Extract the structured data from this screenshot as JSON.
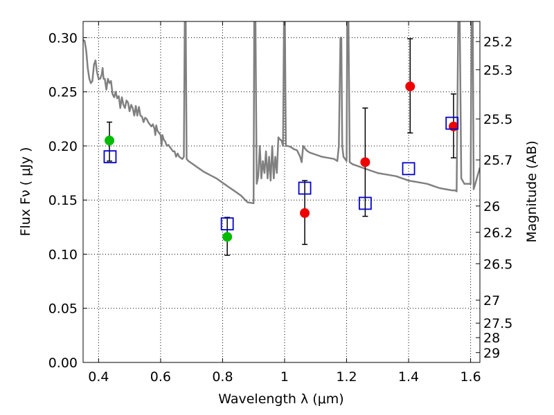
{
  "chart_data": {
    "type": "scatter",
    "xlabel": "Wavelength  λ (μm)",
    "ylabel": "Flux  Fν  ( μJy )",
    "y2label": "Magnitude (AB)",
    "xlim": [
      0.35,
      1.63
    ],
    "ylim": [
      0.0,
      0.315
    ],
    "grid": true,
    "x_ticks": [
      {
        "value": 0.4,
        "label": "0.4"
      },
      {
        "value": 0.6,
        "label": "0.6"
      },
      {
        "value": 0.8,
        "label": "0.8"
      },
      {
        "value": 1.0,
        "label": "1"
      },
      {
        "value": 1.2,
        "label": "1.2"
      },
      {
        "value": 1.4,
        "label": "1.4"
      },
      {
        "value": 1.6,
        "label": "1.6"
      }
    ],
    "y_ticks": [
      {
        "value": 0.0,
        "label": "0.00"
      },
      {
        "value": 0.05,
        "label": "0.05"
      },
      {
        "value": 0.1,
        "label": "0.10"
      },
      {
        "value": 0.15,
        "label": "0.15"
      },
      {
        "value": 0.2,
        "label": "0.20"
      },
      {
        "value": 0.25,
        "label": "0.25"
      },
      {
        "value": 0.3,
        "label": "0.30"
      }
    ],
    "y2_ticks": [
      {
        "flux": 0.2964,
        "label": "25.2"
      },
      {
        "flux": 0.2704,
        "label": "25.3"
      },
      {
        "flux": 0.2249,
        "label": "25.5"
      },
      {
        "flux": 0.1871,
        "label": "25.7"
      },
      {
        "flux": 0.1445,
        "label": "26"
      },
      {
        "flux": 0.1202,
        "label": "26.2"
      },
      {
        "flux": 0.0912,
        "label": "26.5"
      },
      {
        "flux": 0.0575,
        "label": "27"
      },
      {
        "flux": 0.0363,
        "label": "27.5"
      },
      {
        "flux": 0.0229,
        "label": "28"
      },
      {
        "flux": 0.0091,
        "label": "29"
      }
    ],
    "series": [
      {
        "kind": "line",
        "color": "#808080",
        "points": [
          [
            0.35,
            0.298
          ],
          [
            0.355,
            0.297
          ],
          [
            0.36,
            0.288
          ],
          [
            0.365,
            0.272
          ],
          [
            0.37,
            0.262
          ],
          [
            0.375,
            0.258
          ],
          [
            0.38,
            0.26
          ],
          [
            0.385,
            0.275
          ],
          [
            0.39,
            0.279
          ],
          [
            0.395,
            0.268
          ],
          [
            0.4,
            0.262
          ],
          [
            0.405,
            0.262
          ],
          [
            0.41,
            0.266
          ],
          [
            0.413,
            0.272
          ],
          [
            0.416,
            0.262
          ],
          [
            0.42,
            0.262
          ],
          [
            0.425,
            0.252
          ],
          [
            0.43,
            0.262
          ],
          [
            0.435,
            0.258
          ],
          [
            0.44,
            0.26
          ],
          [
            0.445,
            0.248
          ],
          [
            0.45,
            0.245
          ],
          [
            0.455,
            0.25
          ],
          [
            0.46,
            0.244
          ],
          [
            0.465,
            0.246
          ],
          [
            0.47,
            0.235
          ],
          [
            0.475,
            0.245
          ],
          [
            0.48,
            0.238
          ],
          [
            0.485,
            0.235
          ],
          [
            0.49,
            0.242
          ],
          [
            0.495,
            0.24
          ],
          [
            0.5,
            0.232
          ],
          [
            0.505,
            0.238
          ],
          [
            0.51,
            0.235
          ],
          [
            0.515,
            0.228
          ],
          [
            0.52,
            0.237
          ],
          [
            0.525,
            0.228
          ],
          [
            0.53,
            0.236
          ],
          [
            0.535,
            0.228
          ],
          [
            0.54,
            0.227
          ],
          [
            0.545,
            0.222
          ],
          [
            0.55,
            0.226
          ],
          [
            0.555,
            0.225
          ],
          [
            0.56,
            0.222
          ],
          [
            0.565,
            0.22
          ],
          [
            0.57,
            0.218
          ],
          [
            0.575,
            0.22
          ],
          [
            0.58,
            0.216
          ],
          [
            0.583,
            0.21
          ],
          [
            0.586,
            0.219
          ],
          [
            0.59,
            0.214
          ],
          [
            0.595,
            0.212
          ],
          [
            0.6,
            0.21
          ],
          [
            0.603,
            0.2
          ],
          [
            0.606,
            0.21
          ],
          [
            0.61,
            0.206
          ],
          [
            0.615,
            0.204
          ],
          [
            0.62,
            0.2
          ],
          [
            0.625,
            0.201
          ],
          [
            0.63,
            0.199
          ],
          [
            0.635,
            0.197
          ],
          [
            0.64,
            0.195
          ],
          [
            0.645,
            0.195
          ],
          [
            0.65,
            0.19
          ],
          [
            0.655,
            0.193
          ],
          [
            0.66,
            0.19
          ],
          [
            0.665,
            0.189
          ],
          [
            0.67,
            0.188
          ],
          [
            0.675,
            0.19
          ],
          [
            0.678,
            0.315
          ],
          [
            0.681,
            0.315
          ],
          [
            0.684,
            0.188
          ],
          [
            0.69,
            0.186
          ],
          [
            0.7,
            0.184
          ],
          [
            0.72,
            0.18
          ],
          [
            0.74,
            0.176
          ],
          [
            0.76,
            0.173
          ],
          [
            0.78,
            0.17
          ],
          [
            0.8,
            0.166
          ],
          [
            0.82,
            0.162
          ],
          [
            0.84,
            0.158
          ],
          [
            0.86,
            0.154
          ],
          [
            0.88,
            0.148
          ],
          [
            0.9,
            0.147
          ],
          [
            0.902,
            0.315
          ],
          [
            0.906,
            0.315
          ],
          [
            0.91,
            0.165
          ],
          [
            0.915,
            0.172
          ],
          [
            0.92,
            0.2
          ],
          [
            0.925,
            0.17
          ],
          [
            0.93,
            0.186
          ],
          [
            0.935,
            0.175
          ],
          [
            0.94,
            0.195
          ],
          [
            0.945,
            0.17
          ],
          [
            0.95,
            0.19
          ],
          [
            0.955,
            0.168
          ],
          [
            0.96,
            0.2
          ],
          [
            0.965,
            0.17
          ],
          [
            0.97,
            0.19
          ],
          [
            0.975,
            0.175
          ],
          [
            0.98,
            0.208
          ],
          [
            0.985,
            0.206
          ],
          [
            0.99,
            0.205
          ],
          [
            0.995,
            0.2
          ],
          [
            0.998,
            0.315
          ],
          [
            1.001,
            0.315
          ],
          [
            1.004,
            0.2
          ],
          [
            1.01,
            0.2
          ],
          [
            1.02,
            0.199
          ],
          [
            1.03,
            0.197
          ],
          [
            1.04,
            0.196
          ],
          [
            1.05,
            0.19
          ],
          [
            1.055,
            0.185
          ],
          [
            1.06,
            0.2
          ],
          [
            1.07,
            0.196
          ],
          [
            1.08,
            0.194
          ],
          [
            1.1,
            0.192
          ],
          [
            1.12,
            0.19
          ],
          [
            1.14,
            0.189
          ],
          [
            1.16,
            0.188
          ],
          [
            1.17,
            0.186
          ],
          [
            1.175,
            0.2
          ],
          [
            1.18,
            0.3
          ],
          [
            1.183,
            0.3
          ],
          [
            1.186,
            0.2
          ],
          [
            1.19,
            0.19
          ],
          [
            1.2,
            0.186
          ],
          [
            1.202,
            0.315
          ],
          [
            1.206,
            0.315
          ],
          [
            1.21,
            0.185
          ],
          [
            1.22,
            0.183
          ],
          [
            1.24,
            0.181
          ],
          [
            1.26,
            0.179
          ],
          [
            1.28,
            0.177
          ],
          [
            1.3,
            0.175
          ],
          [
            1.32,
            0.174
          ],
          [
            1.34,
            0.173
          ],
          [
            1.36,
            0.172
          ],
          [
            1.38,
            0.17
          ],
          [
            1.4,
            0.168
          ],
          [
            1.42,
            0.167
          ],
          [
            1.44,
            0.166
          ],
          [
            1.46,
            0.165
          ],
          [
            1.48,
            0.163
          ],
          [
            1.5,
            0.161
          ],
          [
            1.52,
            0.16
          ],
          [
            1.54,
            0.159
          ],
          [
            1.55,
            0.159
          ],
          [
            1.555,
            0.158
          ],
          [
            1.56,
            0.315
          ],
          [
            1.565,
            0.315
          ],
          [
            1.57,
            0.17
          ],
          [
            1.58,
            0.165
          ],
          [
            1.59,
            0.165
          ],
          [
            1.6,
            0.165
          ],
          [
            1.603,
            0.315
          ],
          [
            1.607,
            0.315
          ],
          [
            1.61,
            0.16
          ],
          [
            1.615,
            0.165
          ],
          [
            1.62,
            0.17
          ],
          [
            1.625,
            0.175
          ],
          [
            1.63,
            0.18
          ]
        ]
      },
      {
        "kind": "errorbar",
        "color": "#000000",
        "points": [
          {
            "x": 0.435,
            "y": 0.205,
            "ylow": 0.186,
            "yhigh": 0.222
          },
          {
            "x": 0.815,
            "y": 0.116,
            "ylow": 0.099,
            "yhigh": 0.134
          },
          {
            "x": 1.065,
            "y": 0.138,
            "ylow": 0.109,
            "yhigh": 0.168
          },
          {
            "x": 1.26,
            "y": 0.185,
            "ylow": 0.135,
            "yhigh": 0.235
          },
          {
            "x": 1.405,
            "y": 0.255,
            "ylow": 0.212,
            "yhigh": 0.299
          },
          {
            "x": 1.545,
            "y": 0.218,
            "ylow": 0.189,
            "yhigh": 0.248
          }
        ]
      },
      {
        "kind": "marker",
        "shape": "circle",
        "color": "#00bb00",
        "points": [
          [
            0.435,
            0.205
          ],
          [
            0.815,
            0.116
          ]
        ]
      },
      {
        "kind": "marker",
        "shape": "circle",
        "color": "#ee0000",
        "points": [
          [
            1.065,
            0.138
          ],
          [
            1.26,
            0.185
          ],
          [
            1.405,
            0.255
          ],
          [
            1.545,
            0.218
          ]
        ]
      },
      {
        "kind": "marker",
        "shape": "square-open",
        "color": "#0000cc",
        "points": [
          [
            0.437,
            0.19
          ],
          [
            0.815,
            0.128
          ],
          [
            1.065,
            0.161
          ],
          [
            1.26,
            0.147
          ],
          [
            1.4,
            0.179
          ],
          [
            1.54,
            0.221
          ]
        ]
      }
    ]
  }
}
